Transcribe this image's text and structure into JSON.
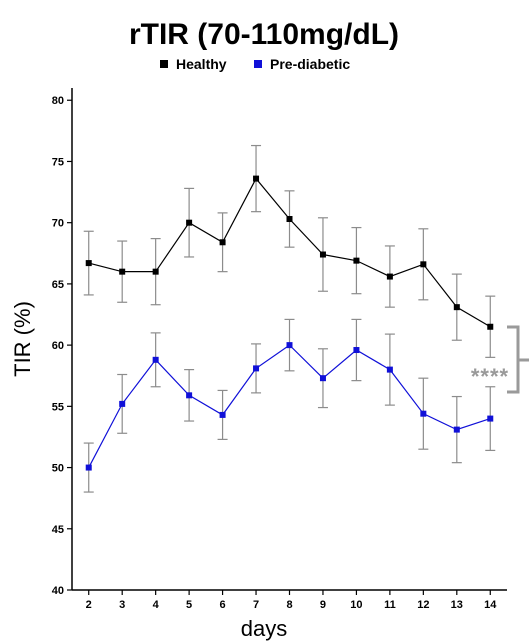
{
  "chart_data": {
    "type": "line",
    "title": "rTIR (70-110mg/dL)",
    "xlabel": "days",
    "ylabel": "TIR (%)",
    "x": [
      2,
      3,
      4,
      5,
      6,
      7,
      8,
      9,
      10,
      11,
      12,
      13,
      14
    ],
    "xlim": [
      1.5,
      14.5
    ],
    "ylim": [
      40,
      81
    ],
    "yticks": [
      40,
      45,
      50,
      55,
      60,
      65,
      70,
      75,
      80
    ],
    "grid": false,
    "legend_position": "top-center",
    "series": [
      {
        "name": "Healthy",
        "color": "#000000",
        "marker": "square",
        "values": [
          66.7,
          66.0,
          66.0,
          70.0,
          68.4,
          73.6,
          70.3,
          67.4,
          66.9,
          65.6,
          66.6,
          63.1,
          61.5
        ],
        "error": [
          2.6,
          2.5,
          2.7,
          2.8,
          2.4,
          2.7,
          2.3,
          3.0,
          2.7,
          2.5,
          2.9,
          2.7,
          2.5
        ]
      },
      {
        "name": "Pre-diabetic",
        "color": "#1010d8",
        "marker": "square",
        "values": [
          50.0,
          55.2,
          58.8,
          55.9,
          54.3,
          58.1,
          60.0,
          57.3,
          59.6,
          58.0,
          54.4,
          53.1,
          54.0
        ],
        "error": [
          2.0,
          2.4,
          2.2,
          2.1,
          2.0,
          2.0,
          2.1,
          2.4,
          2.5,
          2.9,
          2.9,
          2.7,
          2.6
        ]
      }
    ],
    "annotations": [
      {
        "text": "****",
        "type": "significance-bracket",
        "color": "#9a9a9a"
      }
    ]
  }
}
